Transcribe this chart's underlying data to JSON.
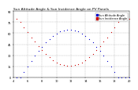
{
  "title": "Sun Altitude Angle & Sun Incidence Angle on PV Panels",
  "legend_blue": "Sun Altitude Angle",
  "legend_red": "Sun Incidence Angle",
  "ylim": [
    0,
    90
  ],
  "xlim": [
    4,
    20
  ],
  "bg_color": "#ffffff",
  "grid_color": "#b0b0b0",
  "blue_color": "#0000cc",
  "red_color": "#cc0000",
  "title_fontsize": 3.2,
  "tick_fontsize": 2.5,
  "legend_fontsize": 2.5,
  "yticks": [
    0,
    15,
    30,
    45,
    60,
    75,
    90
  ],
  "xticks": [
    4,
    6,
    8,
    10,
    12,
    14,
    16,
    18,
    20
  ]
}
